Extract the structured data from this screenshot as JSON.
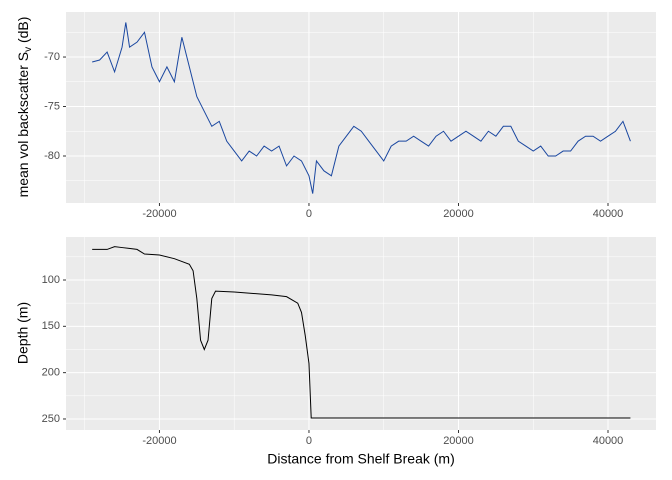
{
  "chart_data": [
    {
      "type": "line",
      "y_label": {
        "main": "mean vol backscatter S",
        "sub": "v",
        "rest": " (dB)"
      },
      "color": "#1a47a0",
      "x": [
        -29000,
        -28000,
        -27000,
        -26000,
        -25000,
        -24500,
        -24000,
        -23000,
        -22000,
        -21000,
        -20000,
        -19000,
        -18000,
        -17000,
        -16000,
        -15000,
        -14000,
        -13000,
        -12000,
        -11000,
        -10000,
        -9000,
        -8000,
        -7000,
        -6000,
        -5000,
        -4000,
        -3000,
        -2000,
        -1000,
        0,
        500,
        1000,
        2000,
        3000,
        4000,
        5000,
        6000,
        7000,
        8000,
        9000,
        10000,
        11000,
        12000,
        13000,
        14000,
        15000,
        16000,
        17000,
        18000,
        19000,
        20000,
        21000,
        22000,
        23000,
        24000,
        25000,
        26000,
        27000,
        28000,
        29000,
        30000,
        31000,
        32000,
        33000,
        34000,
        35000,
        36000,
        37000,
        38000,
        39000,
        40000,
        41000,
        42000,
        43000
      ],
      "values": [
        -70.5,
        -70.3,
        -69.5,
        -71.5,
        -69,
        -66.5,
        -69,
        -68.5,
        -67.5,
        -71,
        -72.5,
        -71,
        -72.5,
        -68,
        -71,
        -74,
        -75.5,
        -77,
        -76.5,
        -78.5,
        -79.5,
        -80.5,
        -79.5,
        -80,
        -79,
        -79.5,
        -79,
        -81,
        -80,
        -80.5,
        -82,
        -83.8,
        -80.5,
        -81.5,
        -82,
        -79,
        -78,
        -77,
        -77.5,
        -78.5,
        -79.5,
        -80.5,
        -79,
        -78.5,
        -78.5,
        -78,
        -78.5,
        -79,
        -78,
        -77.5,
        -78.5,
        -78,
        -77.5,
        -78,
        -78.5,
        -77.5,
        -78,
        -77,
        -77,
        -78.5,
        -79,
        -79.5,
        -79,
        -80,
        -80,
        -79.5,
        -79.5,
        -78.5,
        -78,
        -78,
        -78.5,
        -78,
        -77.5,
        -76.5,
        -78.5
      ],
      "xlim": [
        -32500,
        46420
      ],
      "xticks": [
        -20000,
        0,
        20000,
        40000
      ],
      "ylim": [
        -84.75,
        -65.45
      ],
      "yticks": [
        -80,
        -75,
        -70
      ],
      "grid": true
    },
    {
      "type": "line",
      "x_label": "Distance from Shelf Break (m)",
      "y_label": "Depth (m)",
      "color": "#000000",
      "x": [
        -29000,
        -27000,
        -26000,
        -25000,
        -23000,
        -22000,
        -20000,
        -18000,
        -16000,
        -15500,
        -15000,
        -14500,
        -14000,
        -13500,
        -13000,
        -12500,
        -10000,
        -5000,
        -3000,
        -1500,
        -1000,
        -500,
        0,
        300,
        43000
      ],
      "values": [
        67,
        67,
        64,
        65,
        67,
        72,
        73,
        77,
        83,
        90,
        120,
        165,
        175,
        165,
        120,
        112,
        113,
        116,
        118,
        125,
        135,
        160,
        190,
        249,
        249
      ],
      "xlim": [
        -32500,
        46420
      ],
      "xticks": [
        -20000,
        0,
        20000,
        40000
      ],
      "ylim": [
        261.9,
        53.6
      ],
      "yticks": [
        100,
        150,
        200,
        250
      ],
      "grid": true
    }
  ]
}
